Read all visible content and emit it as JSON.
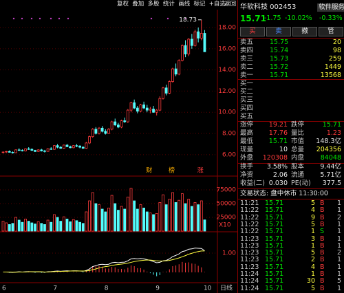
{
  "toolbar": {
    "buttons": [
      "复权",
      "叠加",
      "多股",
      "统计",
      "画线",
      "标记",
      "+自选",
      "返回"
    ]
  },
  "chart": {
    "type": "candlestick",
    "candles": [
      [
        6.2,
        6.3,
        6.1,
        6.25
      ],
      [
        6.25,
        6.35,
        6.15,
        6.3
      ],
      [
        6.3,
        6.4,
        6.2,
        6.22
      ],
      [
        6.22,
        6.3,
        6.1,
        6.18
      ],
      [
        6.18,
        6.5,
        6.15,
        6.45
      ],
      [
        6.45,
        6.6,
        6.35,
        6.4
      ],
      [
        6.4,
        6.5,
        6.3,
        6.35
      ],
      [
        6.35,
        6.6,
        6.3,
        6.55
      ],
      [
        6.55,
        6.7,
        6.45,
        6.5
      ],
      [
        6.5,
        6.6,
        6.35,
        6.4
      ],
      [
        6.4,
        6.45,
        6.25,
        6.3
      ],
      [
        6.3,
        6.5,
        6.25,
        6.45
      ],
      [
        6.45,
        6.55,
        6.3,
        6.35
      ],
      [
        6.35,
        6.45,
        6.2,
        6.3
      ],
      [
        6.3,
        6.6,
        6.28,
        6.55
      ],
      [
        6.55,
        6.7,
        6.45,
        6.5
      ],
      [
        6.5,
        6.9,
        6.45,
        6.85
      ],
      [
        6.85,
        7.0,
        6.6,
        6.7
      ],
      [
        6.7,
        6.8,
        6.55,
        6.6
      ],
      [
        6.6,
        6.95,
        6.55,
        6.9
      ],
      [
        6.9,
        7.0,
        6.7,
        6.75
      ],
      [
        6.75,
        6.85,
        6.6,
        6.65
      ],
      [
        6.65,
        6.9,
        6.6,
        6.85
      ],
      [
        6.85,
        7.0,
        6.7,
        6.8
      ],
      [
        6.8,
        6.9,
        6.6,
        6.7
      ],
      [
        6.7,
        6.8,
        6.55,
        6.6
      ],
      [
        6.6,
        7.2,
        6.55,
        7.1
      ],
      [
        7.1,
        7.8,
        7.0,
        7.7
      ],
      [
        7.7,
        8.5,
        7.6,
        8.4
      ],
      [
        8.4,
        8.6,
        7.9,
        8.0
      ],
      [
        8.0,
        8.6,
        7.9,
        8.5
      ],
      [
        8.5,
        8.7,
        8.1,
        8.2
      ],
      [
        8.2,
        8.4,
        7.9,
        8.0
      ],
      [
        8.0,
        8.5,
        7.95,
        8.4
      ],
      [
        8.4,
        9.2,
        8.3,
        9.1
      ],
      [
        9.1,
        9.4,
        8.7,
        8.8
      ],
      [
        8.8,
        9.0,
        8.5,
        8.6
      ],
      [
        8.6,
        9.3,
        8.5,
        9.2
      ],
      [
        9.2,
        9.5,
        9.0,
        9.1
      ],
      [
        9.1,
        10.3,
        9.0,
        10.2
      ],
      [
        10.2,
        11.0,
        10.0,
        10.9
      ],
      [
        10.9,
        11.2,
        10.3,
        10.4
      ],
      [
        10.4,
        10.6,
        9.9,
        10.1
      ],
      [
        10.1,
        10.8,
        10.0,
        10.7
      ],
      [
        10.7,
        11.0,
        10.3,
        10.4
      ],
      [
        10.4,
        10.7,
        10.0,
        10.2
      ],
      [
        10.2,
        10.5,
        9.9,
        10.3
      ],
      [
        10.3,
        10.6,
        9.95,
        10.0
      ],
      [
        10.0,
        10.3,
        9.7,
        10.2
      ],
      [
        10.2,
        11.5,
        10.1,
        11.3
      ],
      [
        11.3,
        12.4,
        11.2,
        12.3
      ],
      [
        12.3,
        12.6,
        11.6,
        11.8
      ],
      [
        11.8,
        13.0,
        11.7,
        12.9
      ],
      [
        12.9,
        14.2,
        12.8,
        14.1
      ],
      [
        14.1,
        14.6,
        13.4,
        13.6
      ],
      [
        13.6,
        15.0,
        13.5,
        14.9
      ],
      [
        14.9,
        16.4,
        14.8,
        16.3
      ],
      [
        16.3,
        16.8,
        15.2,
        15.5
      ],
      [
        15.5,
        17.0,
        15.3,
        16.9
      ],
      [
        16.9,
        17.4,
        16.0,
        16.3
      ],
      [
        16.3,
        17.8,
        16.2,
        17.6
      ],
      [
        17.6,
        18.0,
        16.6,
        17.0
      ],
      [
        17.0,
        18.73,
        16.8,
        17.45
      ],
      [
        17.45,
        17.76,
        15.71,
        15.71
      ]
    ],
    "volume": [
      18000,
      15000,
      12000,
      14000,
      25000,
      20000,
      16000,
      22000,
      18000,
      15000,
      13000,
      17000,
      14000,
      12000,
      20000,
      16000,
      30000,
      25000,
      18000,
      26000,
      22000,
      17000,
      21000,
      19000,
      16000,
      14000,
      35000,
      55000,
      70000,
      50000,
      48000,
      40000,
      35000,
      42000,
      65000,
      50000,
      38000,
      45000,
      40000,
      62000,
      78000,
      55000,
      40000,
      48000,
      42000,
      35000,
      33000,
      30000,
      32000,
      52000,
      66000,
      48000,
      58000,
      70000,
      52000,
      56000,
      68000,
      50000,
      58000,
      45000,
      52000,
      48000,
      55000,
      20435
    ],
    "dif": [
      0.02,
      0.02,
      0.01,
      0,
      0.02,
      0.03,
      0.02,
      0.03,
      0.04,
      0.03,
      0.02,
      0.03,
      0.02,
      0.01,
      0.03,
      0.04,
      0.06,
      0.07,
      0.06,
      0.07,
      0.08,
      0.07,
      0.08,
      0.08,
      0.07,
      0.06,
      0.1,
      0.18,
      0.3,
      0.35,
      0.4,
      0.42,
      0.4,
      0.42,
      0.5,
      0.52,
      0.5,
      0.52,
      0.53,
      0.6,
      0.7,
      0.72,
      0.7,
      0.72,
      0.7,
      0.66,
      0.62,
      0.56,
      0.5,
      0.52,
      0.6,
      0.62,
      0.7,
      0.82,
      0.88,
      0.96,
      1.08,
      1.12,
      1.2,
      1.22,
      1.26,
      1.25,
      1.24,
      1.12
    ],
    "dea": [
      0.02,
      0.02,
      0.02,
      0.01,
      0.01,
      0.02,
      0.02,
      0.02,
      0.03,
      0.03,
      0.03,
      0.03,
      0.03,
      0.02,
      0.02,
      0.03,
      0.04,
      0.05,
      0.05,
      0.06,
      0.06,
      0.07,
      0.07,
      0.07,
      0.07,
      0.07,
      0.07,
      0.1,
      0.14,
      0.18,
      0.23,
      0.27,
      0.3,
      0.32,
      0.36,
      0.39,
      0.41,
      0.43,
      0.45,
      0.48,
      0.52,
      0.56,
      0.59,
      0.61,
      0.63,
      0.64,
      0.64,
      0.62,
      0.6,
      0.59,
      0.59,
      0.6,
      0.62,
      0.66,
      0.7,
      0.75,
      0.81,
      0.87,
      0.94,
      0.99,
      1.04,
      1.08,
      1.11,
      1.11
    ],
    "x_labels": [
      "6",
      null,
      null,
      null,
      null,
      null,
      null,
      null,
      null,
      null,
      null,
      null,
      null,
      null,
      null,
      null,
      "7",
      null,
      null,
      null,
      null,
      null,
      null,
      null,
      null,
      null,
      null,
      null,
      null,
      null,
      null,
      null,
      "8",
      null,
      null,
      null,
      null,
      null,
      null,
      null,
      null,
      null,
      null,
      null,
      null,
      null,
      null,
      null,
      "9",
      null,
      null,
      null,
      null,
      null,
      null,
      null,
      null,
      null,
      null,
      null,
      null,
      null,
      null,
      "10"
    ],
    "period": "日线",
    "ylim": [
      4.04,
      19.69
    ],
    "yticks": [
      {
        "value": 6,
        "label": "6.00"
      },
      {
        "value": 8,
        "label": "8.00"
      },
      {
        "value": 10,
        "label": "10.00"
      },
      {
        "value": 12,
        "label": "12.00"
      },
      {
        "value": 14,
        "label": "14.00"
      },
      {
        "value": 16,
        "label": "16.00"
      },
      {
        "value": 18,
        "label": "18.00"
      }
    ],
    "volume_ylim": [
      0,
      97500
    ],
    "volume_ticks": [
      25000,
      50000,
      75000
    ],
    "volume_unit": "X10",
    "macd_ylim": [
      -0.214,
      1.998
    ],
    "macd_ticks": [
      {
        "value": 1,
        "label": "1.00"
      }
    ],
    "events": [
      {
        "index": 46,
        "label": "财"
      },
      {
        "index": 53,
        "label": "榜"
      },
      {
        "index": 62,
        "label": "涨"
      }
    ]
  },
  "quote": {
    "name": "华软科技 002453",
    "sector": "软件服务",
    "price": "15.71",
    "change": "-1.75",
    "pct": "-10.02%",
    "sector_pct": "-0.33%",
    "buttons": [
      "买",
      "卖",
      "撤",
      "管"
    ]
  },
  "order_book": {
    "asks": [
      [
        "卖五",
        "15.75",
        "20"
      ],
      [
        "卖四",
        "15.74",
        "98"
      ],
      [
        "卖三",
        "15.73",
        "259"
      ],
      [
        "卖二",
        "15.72",
        "1449"
      ],
      [
        "卖一",
        "15.71",
        "13568"
      ]
    ],
    "bids": [
      "买一",
      "买二",
      "买三",
      "买四",
      "买五"
    ]
  },
  "stats": [
    [
      "涨停",
      "19.21",
      "跌停",
      "15.71"
    ],
    [
      "最高",
      "17.76",
      "量比",
      "1.23"
    ],
    [
      "最低",
      "15.71",
      "市值",
      "148.3亿"
    ],
    [
      "现量",
      "10",
      "总量",
      "204356"
    ],
    [
      "外盘",
      "120308",
      "内盘",
      "84048"
    ],
    [
      "换手",
      "3.58%",
      "股本",
      "9.44亿"
    ],
    [
      "净资",
      "2.06",
      "流通",
      "5.71亿"
    ],
    [
      "收益(二)",
      "0.030",
      "PE(动)",
      "377.5"
    ]
  ],
  "status": "交易状态: 盘中休市 11:30:00",
  "trades": [
    [
      "11:21",
      "15.71",
      "5",
      "B",
      "1"
    ],
    [
      "11:22",
      "15.71",
      "4",
      "B",
      "1"
    ],
    [
      "11:22",
      "15.71",
      "9",
      "B",
      "2"
    ],
    [
      "11:22",
      "15.71",
      "5",
      "B",
      "1"
    ],
    [
      "11:22",
      "15.71",
      "1",
      "S",
      "1"
    ],
    [
      "11:23",
      "15.71",
      "3",
      "B",
      "1"
    ],
    [
      "11:23",
      "15.71",
      "1",
      "B",
      "1"
    ],
    [
      "11:23",
      "15.71",
      "5",
      "B",
      "2"
    ],
    [
      "11:23",
      "15.71",
      "2",
      "B",
      "1"
    ],
    [
      "11:23",
      "15.71",
      "4",
      "B",
      "1"
    ],
    [
      "11:24",
      "15.71",
      "1",
      "B",
      "1"
    ],
    [
      "11:24",
      "15.71",
      "30",
      "B",
      "5"
    ],
    [
      "11:24",
      "15.71",
      "5",
      "B",
      "1"
    ]
  ]
}
